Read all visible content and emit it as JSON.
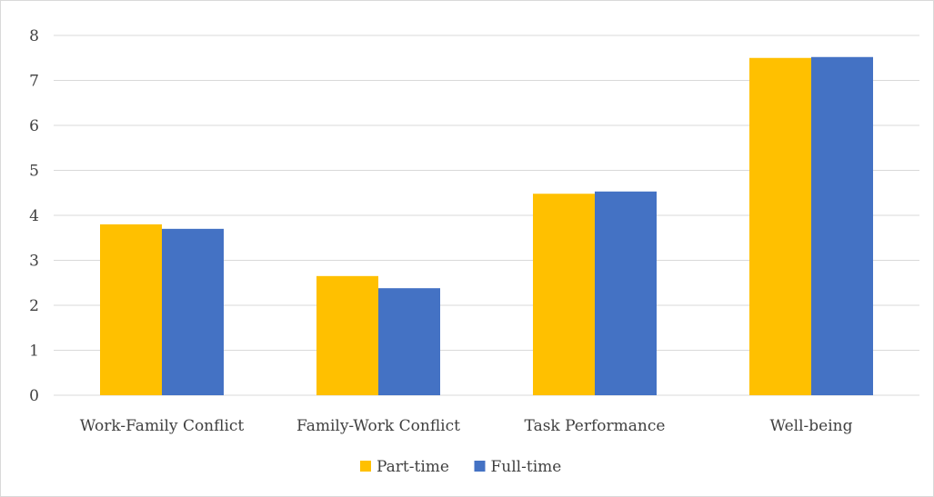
{
  "chart_data": {
    "type": "bar",
    "categories": [
      "Work-Family Conflict",
      "Family-Work Conflict",
      "Task Performance",
      "Well-being"
    ],
    "series": [
      {
        "name": "Part-time",
        "values": [
          3.8,
          2.65,
          4.48,
          7.5
        ],
        "color": "#FFC000"
      },
      {
        "name": "Full-time",
        "values": [
          3.7,
          2.38,
          4.53,
          7.52
        ],
        "color": "#4472C4"
      }
    ],
    "ylim": [
      0,
      8
    ],
    "yticks": [
      0,
      1,
      2,
      3,
      4,
      5,
      6,
      7,
      8
    ],
    "grid": true,
    "legend_position": "bottom",
    "gridline_color": "#d9d9d9"
  }
}
